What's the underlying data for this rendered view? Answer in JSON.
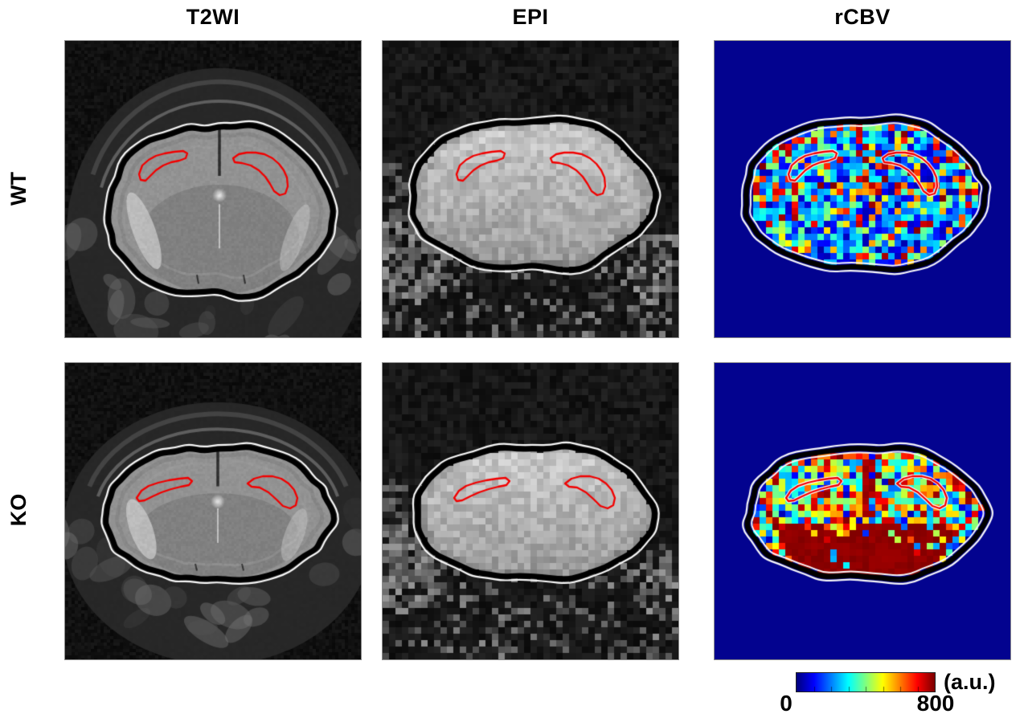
{
  "column_headers": [
    {
      "id": "t2wi",
      "label": "T2WI"
    },
    {
      "id": "epi",
      "label": "EPI"
    },
    {
      "id": "rcbv",
      "label": "rCBV"
    }
  ],
  "row_labels": [
    {
      "id": "wt",
      "label": "WT"
    },
    {
      "id": "ko",
      "label": "KO"
    }
  ],
  "panels": [
    {
      "id": "wt-t2wi",
      "row": "WT",
      "column": "T2WI",
      "modality": "t2",
      "seed": 11,
      "description": "coronal mouse brain T2-weighted MRI, black brain contour with white outline, bilateral red hippocampal ROIs"
    },
    {
      "id": "wt-epi",
      "row": "WT",
      "column": "EPI",
      "modality": "epi",
      "seed": 22,
      "description": "low-resolution echo-planar image of same slice with contours and ROIs"
    },
    {
      "id": "wt-rcbv",
      "row": "WT",
      "column": "rCBV",
      "modality": "rcbv",
      "seed": 33,
      "description": "rCBV parametric map, jet colormap on navy background, mostly blue voxels"
    },
    {
      "id": "ko-t2wi",
      "row": "KO",
      "column": "T2WI",
      "modality": "t2",
      "seed": 44,
      "description": "coronal mouse brain T2-weighted MRI, flatter brain, contours and ROIs"
    },
    {
      "id": "ko-epi",
      "row": "KO",
      "column": "EPI",
      "modality": "epi",
      "seed": 55,
      "description": "low-resolution echo-planar image with contours and ROIs"
    },
    {
      "id": "ko-rcbv",
      "row": "KO",
      "column": "rCBV",
      "modality": "rcbv",
      "seed": 66,
      "description": "rCBV parametric map with elevated values, large dark-red ventral region"
    }
  ],
  "roi": {
    "label": "hippocampal ROI outline",
    "color": "#f20000"
  },
  "contours": {
    "brain_outline_color": "#000000",
    "thin_contour_color": "#f8f8f8"
  },
  "colorbar": {
    "min_label": "0",
    "max_label": "800",
    "unit_label": "(a.u.)",
    "colormap": "jet",
    "range": [
      0,
      800
    ]
  },
  "colors": {
    "page_background": "#ffffff",
    "rcbv_background": "#03038f",
    "panel_border": "#8a8a8a",
    "label_color": "#000000"
  }
}
